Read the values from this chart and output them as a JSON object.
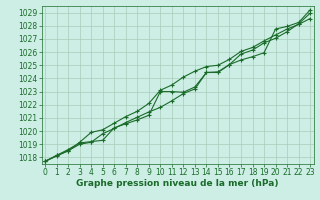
{
  "title": "",
  "xlabel": "Graphe pression niveau de la mer (hPa)",
  "ylabel": "",
  "bg_color": "#cceee4",
  "grid_color": "#aaccbb",
  "line_color": "#1a6b2a",
  "marker_color": "#1a6b2a",
  "xlim": [
    -0.3,
    23.3
  ],
  "ylim": [
    1017.5,
    1029.5
  ],
  "yticks": [
    1018,
    1019,
    1020,
    1021,
    1022,
    1023,
    1024,
    1025,
    1026,
    1027,
    1028,
    1029
  ],
  "xticks": [
    0,
    1,
    2,
    3,
    4,
    5,
    6,
    7,
    8,
    9,
    10,
    11,
    12,
    13,
    14,
    15,
    16,
    17,
    18,
    19,
    20,
    21,
    22,
    23
  ],
  "line1": [
    1017.7,
    1018.1,
    1018.5,
    1019.0,
    1019.15,
    1019.8,
    1020.2,
    1020.65,
    1021.05,
    1021.45,
    1021.8,
    1022.3,
    1022.85,
    1023.2,
    1024.45,
    1024.45,
    1025.05,
    1025.85,
    1026.15,
    1026.7,
    1027.05,
    1027.55,
    1028.15,
    1028.95
  ],
  "line2": [
    1017.7,
    1018.15,
    1018.5,
    1019.15,
    1019.9,
    1020.1,
    1020.6,
    1021.1,
    1021.5,
    1022.1,
    1023.1,
    1023.5,
    1024.1,
    1024.55,
    1024.9,
    1025.0,
    1025.45,
    1026.05,
    1026.35,
    1026.85,
    1027.3,
    1027.75,
    1028.1,
    1028.55
  ],
  "line3": [
    1017.7,
    1018.15,
    1018.6,
    1019.1,
    1019.2,
    1019.3,
    1020.25,
    1020.55,
    1020.85,
    1021.2,
    1023.0,
    1023.0,
    1022.95,
    1023.35,
    1024.45,
    1024.5,
    1025.05,
    1025.4,
    1025.65,
    1025.95,
    1027.75,
    1027.95,
    1028.25,
    1029.2
  ],
  "tick_fontsize": 5.5,
  "xlabel_fontsize": 6.5,
  "tick_color": "#1a6b2a",
  "xlabel_color": "#1a6b2a",
  "axis_color": "#1a6b2a"
}
